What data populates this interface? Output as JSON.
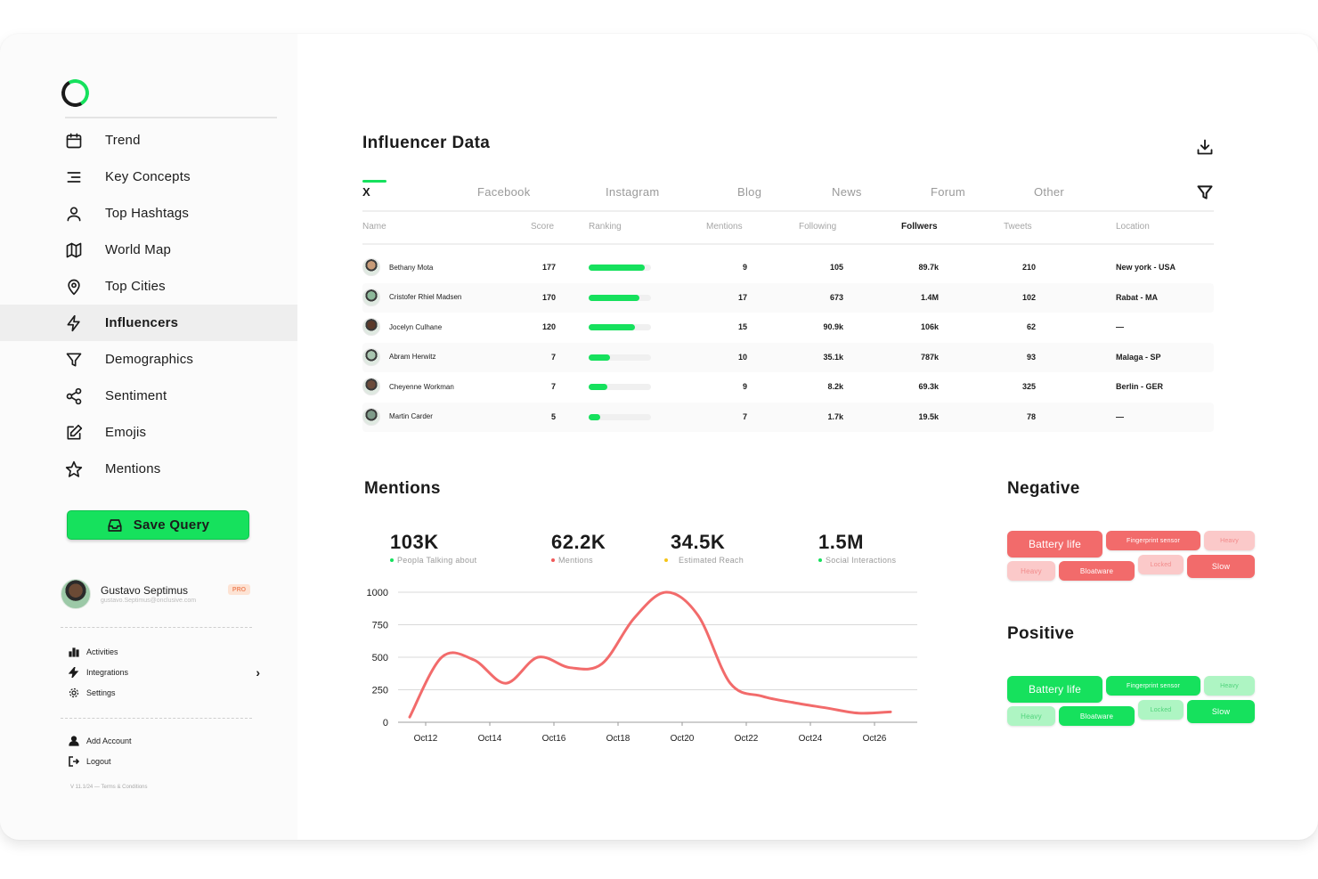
{
  "sidebar": {
    "items": [
      {
        "label": "Trend",
        "icon": "calendar-icon"
      },
      {
        "label": "Key Concepts",
        "icon": "lines-icon"
      },
      {
        "label": "Top Hashtags",
        "icon": "user-icon"
      },
      {
        "label": "World Map",
        "icon": "map-icon"
      },
      {
        "label": "Top Cities",
        "icon": "pin-icon"
      },
      {
        "label": "Influencers",
        "icon": "bolt-icon"
      },
      {
        "label": "Demographics",
        "icon": "filter-icon"
      },
      {
        "label": "Sentiment",
        "icon": "share-icon"
      },
      {
        "label": "Emojis",
        "icon": "edit-icon"
      },
      {
        "label": "Mentions",
        "icon": "star-icon"
      }
    ],
    "active_item": "Influencers",
    "save_label": "Save Query",
    "user": {
      "name": "Gustavo Septimus",
      "email": "gustavo.Septimus@onclusive.com",
      "badge": "PRO"
    },
    "secondary": [
      {
        "label": "Activities",
        "icon": "bar-chart-icon"
      },
      {
        "label": "Integrations",
        "icon": "bolt-icon"
      },
      {
        "label": "Settings",
        "icon": "gear-icon"
      }
    ],
    "account": [
      {
        "label": "Add Account",
        "icon": "user-icon"
      },
      {
        "label": "Logout",
        "icon": "logout-icon"
      }
    ],
    "version": "V 11.1/24 — Terms & Conditions"
  },
  "influencer": {
    "title": "Influencer Data",
    "tabs": [
      "X",
      "Facebook",
      "Instagram",
      "Blog",
      "News",
      "Forum",
      "Other"
    ],
    "active_tab": "X",
    "columns": [
      "Name",
      "Score",
      "Ranking",
      "Mentions",
      "Following",
      "Follwers",
      "Tweets",
      "Location"
    ],
    "rows": [
      {
        "name": "Bethany Mota",
        "score": "177",
        "ranking": 0.9,
        "mentions": "9",
        "following": "105",
        "followers": "89.7k",
        "tweets": "210",
        "location": "New york - USA"
      },
      {
        "name": "Cristofer Rhiel Madsen",
        "score": "170",
        "ranking": 0.82,
        "mentions": "17",
        "following": "673",
        "followers": "1.4M",
        "tweets": "102",
        "location": "Rabat - MA"
      },
      {
        "name": "Jocelyn Culhane",
        "score": "120",
        "ranking": 0.74,
        "mentions": "15",
        "following": "90.9k",
        "followers": "106k",
        "tweets": "62",
        "location": "—"
      },
      {
        "name": "Abram Herwitz",
        "score": "7",
        "ranking": 0.34,
        "mentions": "10",
        "following": "35.1k",
        "followers": "787k",
        "tweets": "93",
        "location": "Malaga - SP"
      },
      {
        "name": "Cheyenne Workman",
        "score": "7",
        "ranking": 0.3,
        "mentions": "9",
        "following": "8.2k",
        "followers": "69.3k",
        "tweets": "325",
        "location": "Berlin - GER"
      },
      {
        "name": "Martin Carder",
        "score": "5",
        "ranking": 0.18,
        "mentions": "7",
        "following": "1.7k",
        "followers": "19.5k",
        "tweets": "78",
        "location": "—"
      }
    ]
  },
  "mentions": {
    "title": "Mentions",
    "stats": [
      {
        "value": "103K",
        "label": "Peopla Talking about",
        "color": "#16e15d"
      },
      {
        "value": "62.2K",
        "label": "Mentions",
        "color": "#f05a5a"
      },
      {
        "value": "34.5K",
        "label": "Estimated Reach",
        "color": "#f5c518"
      },
      {
        "value": "1.5M",
        "label": "Social Interactions",
        "color": "#16e15d"
      }
    ]
  },
  "chart_data": {
    "type": "line",
    "x": [
      "Oct12",
      "Oct13",
      "Oct14",
      "Oct15",
      "Oct16",
      "Oct17",
      "Oct18",
      "Oct19",
      "Oct20",
      "Oct21",
      "Oct22",
      "Oct23",
      "Oct24",
      "Oct25",
      "Oct26",
      "Oct27"
    ],
    "tick_labels": [
      "Oct12",
      "Oct14",
      "Oct16",
      "Oct18",
      "Oct20",
      "Oct22",
      "Oct24",
      "Oct26"
    ],
    "series": [
      {
        "values": [
          40,
          500,
          480,
          300,
          500,
          420,
          450,
          800,
          1000,
          820,
          300,
          200,
          150,
          110,
          70,
          80
        ],
        "color": "#f26b6b"
      }
    ],
    "yticks": [
      0,
      250,
      500,
      750,
      1000
    ],
    "ylim": [
      0,
      1000
    ],
    "grid": true
  },
  "negative": {
    "title": "Negative",
    "tags": [
      {
        "label": "Battery life",
        "style": "strong"
      },
      {
        "label": "Fingerprint sensor",
        "style": "strong"
      },
      {
        "label": "Heavy",
        "style": "light"
      },
      {
        "label": "Heavy",
        "style": "light"
      },
      {
        "label": "Bloatware",
        "style": "strong"
      },
      {
        "label": "Locked",
        "style": "light"
      },
      {
        "label": "Slow",
        "style": "strong"
      }
    ],
    "strong_color": "#f26b6b",
    "light_color": "#fbc9c9"
  },
  "positive": {
    "title": "Positive",
    "tags": [
      {
        "label": "Battery life",
        "style": "strong"
      },
      {
        "label": "Fingerprint sensor",
        "style": "strong"
      },
      {
        "label": "Heavy",
        "style": "light"
      },
      {
        "label": "Heavy",
        "style": "light"
      },
      {
        "label": "Bloatware",
        "style": "strong"
      },
      {
        "label": "Locked",
        "style": "light"
      },
      {
        "label": "Slow",
        "style": "strong"
      }
    ],
    "strong_color": "#16e15d",
    "light_color": "#aef5c3"
  }
}
